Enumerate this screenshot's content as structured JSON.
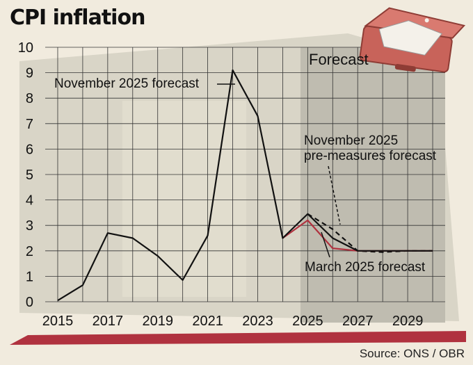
{
  "title": "CPI inflation",
  "source": "Source: ONS / OBR",
  "forecast_label": "Forecast",
  "annotations": {
    "nov_forecast": "November 2025 forecast",
    "pre_measures_line1": "November 2025",
    "pre_measures_line2": "pre-measures forecast",
    "mar_forecast": "March 2025 forecast"
  },
  "colors": {
    "background": "#f1ebde",
    "plot_bg": "#d9d5c7",
    "forecast_bg": "#bfbcb0",
    "nov_line": "#111111",
    "mar_line": "#b0323f",
    "bar_accent": "#b0323f",
    "briefcase": "#c8635a"
  },
  "icons": {
    "briefcase": "briefcase-icon"
  },
  "chart_data": {
    "type": "line",
    "title": "CPI inflation",
    "xlim": [
      2014.5,
      2030.5
    ],
    "ylim": [
      0,
      10
    ],
    "x_ticks": [
      2015,
      2017,
      2019,
      2021,
      2023,
      2025,
      2027,
      2029
    ],
    "y_ticks": [
      0,
      1,
      2,
      3,
      4,
      5,
      6,
      7,
      8,
      9,
      10
    ],
    "grid": true,
    "forecast_start": 2025,
    "series": [
      {
        "name": "November 2025 forecast",
        "style": "solid",
        "color": "#111111",
        "x": [
          2015,
          2016,
          2017,
          2018,
          2019,
          2020,
          2021,
          2022,
          2023,
          2024,
          2025,
          2026,
          2027,
          2028,
          2029,
          2030
        ],
        "y": [
          0.05,
          0.65,
          2.7,
          2.5,
          1.8,
          0.85,
          2.6,
          9.1,
          7.3,
          2.5,
          3.45,
          2.5,
          2.0,
          2.0,
          2.0,
          2.0
        ]
      },
      {
        "name": "November 2025 pre-measures forecast",
        "style": "dashed",
        "color": "#111111",
        "x": [
          2025,
          2026,
          2027,
          2028,
          2029,
          2030
        ],
        "y": [
          3.45,
          2.85,
          2.0,
          1.95,
          2.0,
          2.0
        ]
      },
      {
        "name": "March 2025 forecast",
        "style": "solid",
        "color": "#b0323f",
        "x": [
          2024,
          2025,
          2026,
          2027,
          2028,
          2029,
          2030
        ],
        "y": [
          2.5,
          3.2,
          2.1,
          2.0,
          2.0,
          2.0,
          2.0
        ]
      }
    ]
  }
}
